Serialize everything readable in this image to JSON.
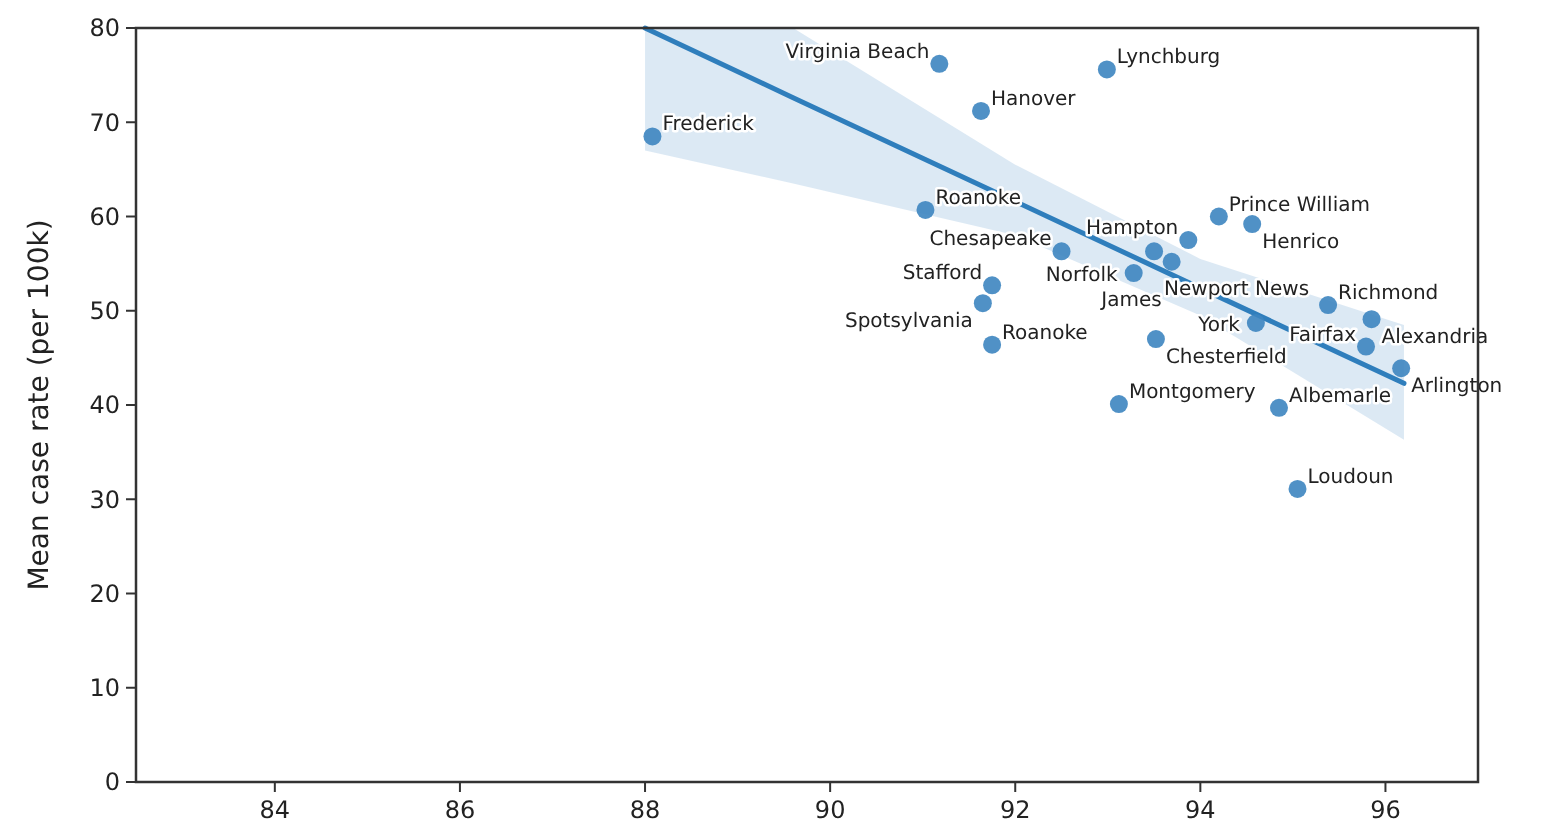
{
  "chart_data": {
    "type": "scatter",
    "ylabel": "Mean case rate (per 100k)",
    "xlim": [
      82.5,
      97
    ],
    "xticks": [
      84,
      86,
      88,
      90,
      92,
      94,
      96
    ],
    "ylim": [
      0,
      80
    ],
    "yticks": [
      0,
      10,
      20,
      30,
      40,
      50,
      60,
      70,
      80
    ],
    "grid": false,
    "marker": "circle",
    "series": [
      {
        "color": "#3d85c0",
        "x": [
          88.08,
          91.18,
          92.99,
          91.63,
          91.03,
          92.5,
          94.2,
          94.56,
          93.87,
          93.5,
          93.69,
          93.28,
          91.75,
          91.65,
          91.75,
          93.52,
          94.6,
          95.38,
          95.85,
          95.79,
          96.17,
          93.12,
          94.85,
          95.05
        ],
        "values": [
          68.5,
          76.2,
          75.6,
          71.2,
          60.7,
          56.3,
          60.0,
          59.2,
          57.5,
          56.3,
          55.2,
          54.0,
          52.7,
          50.8,
          46.4,
          47.0,
          48.7,
          50.6,
          49.1,
          46.2,
          43.9,
          40.1,
          39.7,
          31.1
        ]
      },
      {
        "type": "line",
        "color": "#2f7ebc",
        "line_style": "solid",
        "marker": "none",
        "x": [
          88.0,
          89.6,
          92,
          94,
          96.2
        ],
        "values": [
          80,
          72.6,
          61.6,
          52.4,
          42.3
        ],
        "lower": [
          67,
          63.5,
          58,
          49.5,
          36.3
        ],
        "upper": [
          80,
          80,
          65.5,
          55.5,
          48.5
        ]
      }
    ],
    "annotations": [
      {
        "text": "Frederick",
        "x": 88.08,
        "y": 68.5
      },
      {
        "text": "Virginia Beach",
        "x": 91.18,
        "y": 76.2
      },
      {
        "text": "Lynchburg",
        "x": 92.99,
        "y": 75.6
      },
      {
        "text": "Hanover",
        "x": 91.63,
        "y": 71.2
      },
      {
        "text": "Roanoke",
        "x": 91.03,
        "y": 60.7
      },
      {
        "text": "Chesapeake",
        "x": 92.5,
        "y": 56.3
      },
      {
        "text": "Prince William",
        "x": 94.2,
        "y": 60.0
      },
      {
        "text": "Henrico",
        "x": 94.56,
        "y": 59.2
      },
      {
        "text": "Hampton",
        "x": 93.87,
        "y": 57.5
      },
      {
        "text": "Newport News",
        "x": 93.5,
        "y": 56.3
      },
      {
        "text": "James",
        "x": 93.69,
        "y": 55.2
      },
      {
        "text": "Norfolk",
        "x": 93.28,
        "y": 54.0
      },
      {
        "text": "Stafford",
        "x": 91.75,
        "y": 52.7
      },
      {
        "text": "Spotsylvania",
        "x": 91.65,
        "y": 50.8
      },
      {
        "text": "Roanoke",
        "x": 91.75,
        "y": 46.4
      },
      {
        "text": "Chesterfield",
        "x": 93.52,
        "y": 47.0
      },
      {
        "text": "York",
        "x": 94.6,
        "y": 48.7
      },
      {
        "text": "Richmond",
        "x": 95.38,
        "y": 50.6
      },
      {
        "text": "Alexandria",
        "x": 95.85,
        "y": 49.1
      },
      {
        "text": "Fairfax",
        "x": 95.79,
        "y": 46.2
      },
      {
        "text": "Arlington",
        "x": 96.17,
        "y": 43.9
      },
      {
        "text": "Montgomery",
        "x": 93.12,
        "y": 40.1
      },
      {
        "text": "Albemarle",
        "x": 94.85,
        "y": 39.7
      },
      {
        "text": "Loudoun",
        "x": 95.05,
        "y": 31.1
      }
    ]
  }
}
